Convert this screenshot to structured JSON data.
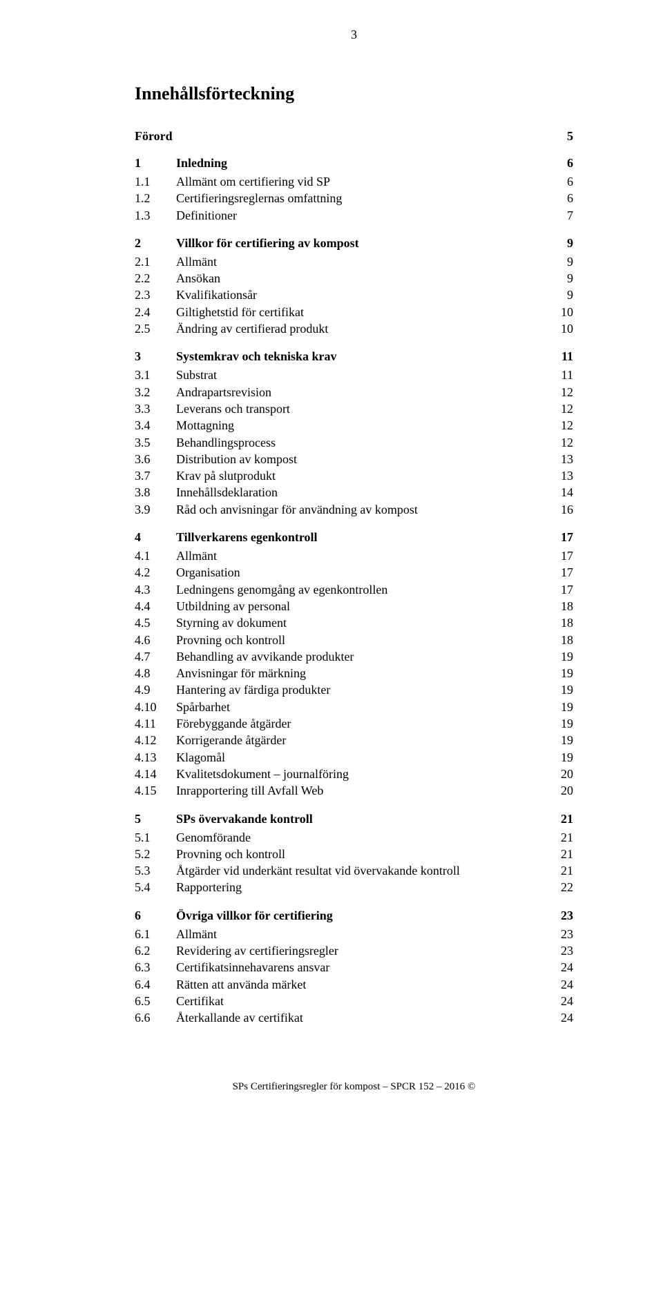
{
  "page_number": "3",
  "title": "Innehållsförteckning",
  "footer": "SPs Certifieringsregler för kompost – SPCR 152 – 2016 ©",
  "toc": [
    {
      "type": "plain-heading",
      "text": "Förord",
      "page": "5"
    },
    {
      "type": "heading",
      "num": "1",
      "text": "Inledning",
      "page": "6"
    },
    {
      "type": "entry",
      "num": "1.1",
      "text": "Allmänt om certifiering vid SP",
      "page": "6"
    },
    {
      "type": "entry",
      "num": "1.2",
      "text": "Certifieringsreglernas omfattning",
      "page": "6"
    },
    {
      "type": "entry",
      "num": "1.3",
      "text": "Definitioner",
      "page": "7"
    },
    {
      "type": "heading",
      "num": "2",
      "text": "Villkor för certifiering av kompost",
      "page": "9"
    },
    {
      "type": "entry",
      "num": "2.1",
      "text": "Allmänt",
      "page": "9"
    },
    {
      "type": "entry",
      "num": "2.2",
      "text": "Ansökan",
      "page": "9"
    },
    {
      "type": "entry",
      "num": "2.3",
      "text": "Kvalifikationsår",
      "page": "9"
    },
    {
      "type": "entry",
      "num": "2.4",
      "text": "Giltighetstid för certifikat",
      "page": "10"
    },
    {
      "type": "entry",
      "num": "2.5",
      "text": "Ändring av certifierad produkt",
      "page": "10"
    },
    {
      "type": "heading",
      "num": "3",
      "text": "Systemkrav och tekniska krav",
      "page": "11"
    },
    {
      "type": "entry",
      "num": "3.1",
      "text": "Substrat",
      "page": "11"
    },
    {
      "type": "entry",
      "num": "3.2",
      "text": "Andrapartsrevision",
      "page": "12"
    },
    {
      "type": "entry",
      "num": "3.3",
      "text": "Leverans och transport",
      "page": "12"
    },
    {
      "type": "entry",
      "num": "3.4",
      "text": "Mottagning",
      "page": "12"
    },
    {
      "type": "entry",
      "num": "3.5",
      "text": "Behandlingsprocess",
      "page": "12"
    },
    {
      "type": "entry",
      "num": "3.6",
      "text": "Distribution av kompost",
      "page": "13"
    },
    {
      "type": "entry",
      "num": "3.7",
      "text": "Krav på slutprodukt",
      "page": "13"
    },
    {
      "type": "entry",
      "num": "3.8",
      "text": "Innehållsdeklaration",
      "page": "14"
    },
    {
      "type": "entry",
      "num": "3.9",
      "text": "Råd och anvisningar för användning av kompost",
      "page": "16"
    },
    {
      "type": "heading",
      "num": "4",
      "text": "Tillverkarens egenkontroll",
      "page": "17"
    },
    {
      "type": "entry",
      "num": "4.1",
      "text": "Allmänt",
      "page": "17"
    },
    {
      "type": "entry",
      "num": "4.2",
      "text": "Organisation",
      "page": "17"
    },
    {
      "type": "entry",
      "num": "4.3",
      "text": "Ledningens genomgång av egenkontrollen",
      "page": "17"
    },
    {
      "type": "entry",
      "num": "4.4",
      "text": "Utbildning av personal",
      "page": "18"
    },
    {
      "type": "entry",
      "num": "4.5",
      "text": "Styrning av dokument",
      "page": "18"
    },
    {
      "type": "entry",
      "num": "4.6",
      "text": "Provning och kontroll",
      "page": "18"
    },
    {
      "type": "entry",
      "num": "4.7",
      "text": "Behandling av avvikande produkter",
      "page": "19"
    },
    {
      "type": "entry",
      "num": "4.8",
      "text": "Anvisningar för märkning",
      "page": "19"
    },
    {
      "type": "entry",
      "num": "4.9",
      "text": "Hantering av färdiga produkter",
      "page": "19"
    },
    {
      "type": "entry",
      "num": "4.10",
      "text": "Spårbarhet",
      "page": "19"
    },
    {
      "type": "entry",
      "num": "4.11",
      "text": "Förebyggande åtgärder",
      "page": "19"
    },
    {
      "type": "entry",
      "num": "4.12",
      "text": "Korrigerande åtgärder",
      "page": "19"
    },
    {
      "type": "entry",
      "num": "4.13",
      "text": "Klagomål",
      "page": "19"
    },
    {
      "type": "entry",
      "num": "4.14",
      "text": "Kvalitetsdokument – journalföring",
      "page": "20"
    },
    {
      "type": "entry",
      "num": "4.15",
      "text": "Inrapportering till Avfall Web",
      "page": "20"
    },
    {
      "type": "heading",
      "num": "5",
      "text": "SPs övervakande kontroll",
      "page": "21"
    },
    {
      "type": "entry",
      "num": "5.1",
      "text": "Genomförande",
      "page": "21"
    },
    {
      "type": "entry",
      "num": "5.2",
      "text": "Provning och kontroll",
      "page": "21"
    },
    {
      "type": "entry",
      "num": "5.3",
      "text": "Åtgärder vid underkänt resultat vid övervakande kontroll",
      "page": "21"
    },
    {
      "type": "entry",
      "num": "5.4",
      "text": "Rapportering",
      "page": "22"
    },
    {
      "type": "heading",
      "num": "6",
      "text": "Övriga villkor för certifiering",
      "page": "23"
    },
    {
      "type": "entry",
      "num": "6.1",
      "text": "Allmänt",
      "page": "23"
    },
    {
      "type": "entry",
      "num": "6.2",
      "text": "Revidering av certifieringsregler",
      "page": "23"
    },
    {
      "type": "entry",
      "num": "6.3",
      "text": "Certifikatsinnehavarens ansvar",
      "page": "24"
    },
    {
      "type": "entry",
      "num": "6.4",
      "text": "Rätten att använda märket",
      "page": "24"
    },
    {
      "type": "entry",
      "num": "6.5",
      "text": "Certifikat",
      "page": "24"
    },
    {
      "type": "entry",
      "num": "6.6",
      "text": "Återkallande av certifikat",
      "page": "24"
    }
  ]
}
